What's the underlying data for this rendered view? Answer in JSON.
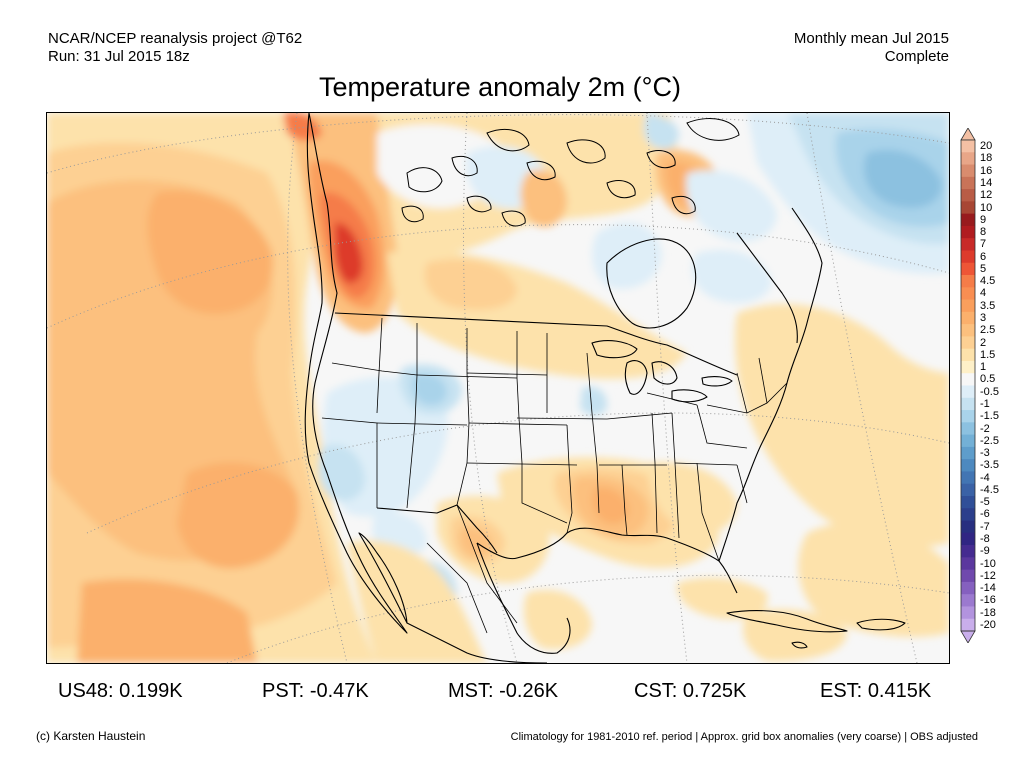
{
  "header": {
    "left_line1": "NCAR/NCEP reanalysis project @T62",
    "left_line2": "Run: 31 Jul 2015 18z",
    "right_line1": "Monthly mean Jul 2015",
    "right_line2": "Complete"
  },
  "title": "Temperature anomaly 2m (°C)",
  "map": {
    "region": "North America",
    "variable": "2m temperature anomaly",
    "units": "°C"
  },
  "colorbar": {
    "labels": [
      "20",
      "18",
      "16",
      "14",
      "12",
      "10",
      "9",
      "8",
      "7",
      "6",
      "5",
      "4.5",
      "4",
      "3.5",
      "3",
      "2.5",
      "2",
      "1.5",
      "1",
      "0.5",
      "-0.5",
      "-1",
      "-1.5",
      "-2",
      "-2.5",
      "-3",
      "-3.5",
      "-4",
      "-4.5",
      "-5",
      "-6",
      "-7",
      "-8",
      "-9",
      "-10",
      "-12",
      "-14",
      "-16",
      "-18",
      "-20"
    ],
    "colors": [
      "#f4c0a4",
      "#e8a688",
      "#d98c6e",
      "#c97358",
      "#b95c46",
      "#a84634",
      "#981b1e",
      "#b01c20",
      "#c82a28",
      "#dd3b2c",
      "#ee5536",
      "#f57c48",
      "#f98e52",
      "#fa9f5d",
      "#fbb06c",
      "#fcc07e",
      "#fdd093",
      "#fde2ab",
      "#fef0c8",
      "#f7f7f7",
      "#deeef8",
      "#c6e2f1",
      "#a9d3ea",
      "#8cc1e0",
      "#73b0d6",
      "#5e9dcb",
      "#4d89bf",
      "#4275b3",
      "#3a62a6",
      "#304f98",
      "#2c3f8c",
      "#282f80",
      "#302583",
      "#452b90",
      "#5b389e",
      "#7049ad",
      "#8560bf",
      "#9b79cf",
      "#b293de",
      "#c9aeeb"
    ]
  },
  "stats": [
    {
      "label": "US48:",
      "value": "0.199K"
    },
    {
      "label": "PST:",
      "value": "-0.47K"
    },
    {
      "label": "MST:",
      "value": "-0.26K"
    },
    {
      "label": "CST:",
      "value": "0.725K"
    },
    {
      "label": "EST:",
      "value": "0.415K"
    }
  ],
  "footer": {
    "left": "(c) Karsten Haustein",
    "right": "Climatology for 1981-2010 ref. period | Approx. grid box anomalies (very coarse) | OBS adjusted"
  }
}
